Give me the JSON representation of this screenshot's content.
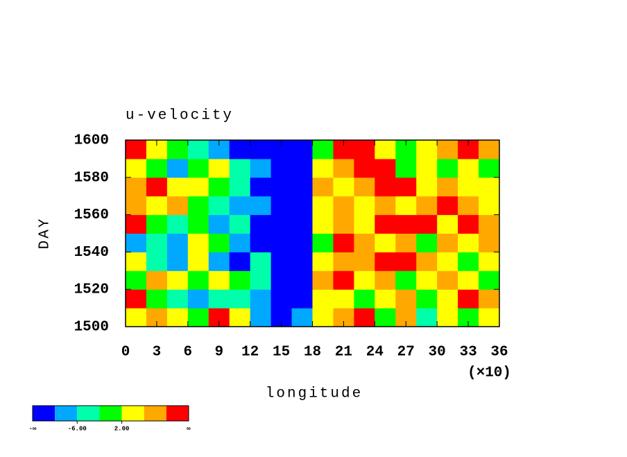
{
  "chart_data": {
    "type": "contourf",
    "title": "u-velocity",
    "x_label": "longitude",
    "y_label": "DAY",
    "x_multiplier": "(×10)",
    "xlim": [
      0,
      36
    ],
    "xticks": [
      0,
      3,
      6,
      9,
      12,
      15,
      18,
      21,
      24,
      27,
      30,
      33,
      36
    ],
    "ylim": [
      1500,
      1600
    ],
    "yticks": [
      1500,
      1520,
      1540,
      1560,
      1580,
      1600
    ],
    "z": [
      [
        4,
        8,
        4,
        0,
        12,
        4,
        -8,
        -12,
        -8,
        4,
        8,
        12,
        0,
        8,
        -4,
        4,
        0,
        4
      ],
      [
        12,
        0,
        -4,
        -8,
        -4,
        -4,
        -8,
        -12,
        -12,
        4,
        4,
        0,
        4,
        8,
        0,
        4,
        12,
        8
      ],
      [
        0,
        8,
        4,
        0,
        4,
        0,
        -4,
        -12,
        -12,
        8,
        12,
        4,
        8,
        0,
        4,
        8,
        4,
        0
      ],
      [
        4,
        -4,
        -8,
        4,
        -8,
        -12,
        -4,
        -12,
        -12,
        4,
        8,
        8,
        12,
        12,
        8,
        4,
        0,
        4
      ],
      [
        -8,
        -4,
        -8,
        4,
        0,
        -8,
        -12,
        -12,
        -12,
        0,
        12,
        8,
        4,
        8,
        0,
        8,
        4,
        8
      ],
      [
        12,
        0,
        -4,
        0,
        -8,
        -4,
        -12,
        -12,
        -12,
        4,
        8,
        4,
        12,
        12,
        12,
        4,
        12,
        8
      ],
      [
        8,
        4,
        8,
        0,
        -4,
        -8,
        -8,
        -12,
        -12,
        4,
        8,
        4,
        8,
        4,
        8,
        12,
        8,
        4
      ],
      [
        8,
        12,
        4,
        4,
        0,
        -4,
        -12,
        -12,
        -12,
        8,
        4,
        8,
        12,
        12,
        4,
        8,
        4,
        4
      ],
      [
        4,
        0,
        -8,
        0,
        4,
        -4,
        -8,
        -12,
        -12,
        4,
        8,
        12,
        12,
        0,
        4,
        0,
        4,
        0
      ],
      [
        12,
        4,
        0,
        -4,
        -8,
        -12,
        -12,
        -12,
        -12,
        0,
        12,
        12,
        4,
        0,
        4,
        8,
        12,
        8
      ]
    ],
    "colorbar": {
      "colors": [
        "#0000ff",
        "#00a8ff",
        "#00ffaa",
        "#00ff00",
        "#ffff00",
        "#ffa800",
        "#ff0000"
      ],
      "bounds": [
        -10,
        -6,
        -2,
        2,
        6,
        10
      ],
      "labels": [
        {
          "value": -6,
          "label": "-6.00"
        },
        {
          "value": 2,
          "label": "2.00"
        }
      ],
      "low_label": "-∞",
      "high_label": "∞"
    }
  }
}
